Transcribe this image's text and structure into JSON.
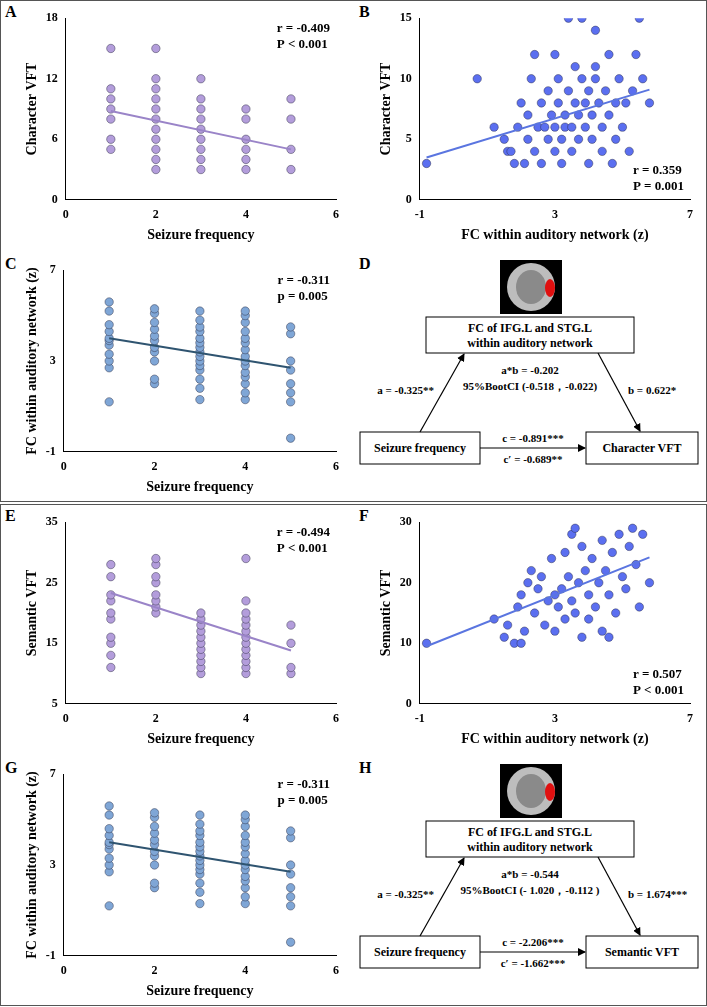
{
  "chart_data": [
    {
      "type": "scatter",
      "panel": "A",
      "x_label": "Seizure frequency",
      "y_label": "Character VFT",
      "x": [
        1,
        1,
        1,
        1,
        1,
        1,
        1,
        2,
        2,
        2,
        2,
        2,
        2,
        2,
        2,
        2,
        2,
        2,
        3,
        3,
        3,
        3,
        3,
        3,
        3,
        3,
        3,
        4,
        4,
        4,
        4,
        4,
        4,
        5,
        5,
        5,
        5
      ],
      "values": [
        5,
        6,
        8,
        9,
        10,
        11,
        15,
        3,
        4,
        5,
        6,
        7,
        8,
        9,
        10,
        11,
        12,
        15,
        3,
        4,
        5,
        6,
        7,
        8,
        9,
        10,
        12,
        3,
        4,
        5,
        6,
        8,
        9,
        3,
        5,
        8,
        10
      ],
      "color": "#b39ddb",
      "fit_line": {
        "x": [
          1,
          5
        ],
        "values": [
          8.8,
          5.0
        ],
        "color": "#9a84c8"
      },
      "annotations": [
        "r = -0.409",
        "P < 0.001"
      ],
      "xlim": [
        0,
        6
      ],
      "xticks": [
        0,
        2,
        4,
        6
      ],
      "ylim": [
        0,
        18
      ],
      "yticks": [
        0,
        6,
        12,
        18
      ],
      "grid": false
    },
    {
      "type": "scatter",
      "panel": "B",
      "x_label": "FC within auditory network (z)",
      "y_label": "Character VFT",
      "x": [
        -0.8,
        0.7,
        1.2,
        1.5,
        1.6,
        1.7,
        1.8,
        1.9,
        2.0,
        2.1,
        2.2,
        2.2,
        2.3,
        2.4,
        2.5,
        2.6,
        2.6,
        2.7,
        2.8,
        2.8,
        2.9,
        3.0,
        3.0,
        3.1,
        3.1,
        3.2,
        3.2,
        3.3,
        3.3,
        3.4,
        3.4,
        3.5,
        3.5,
        3.6,
        3.6,
        3.7,
        3.7,
        3.8,
        3.8,
        3.9,
        3.9,
        4.0,
        4.0,
        4.1,
        4.1,
        4.2,
        4.2,
        4.3,
        4.4,
        4.4,
        4.5,
        4.6,
        4.6,
        4.7,
        4.8,
        4.8,
        4.9,
        5.0,
        5.1,
        5.2,
        5.3,
        5.4,
        5.5,
        5.6,
        5.8,
        3.0,
        2.4,
        4.2
      ],
      "values": [
        3,
        10,
        6,
        5,
        4,
        4,
        3,
        6,
        8,
        3,
        5,
        7,
        10,
        4,
        6,
        3,
        8,
        6,
        5,
        9,
        7,
        4,
        6,
        8,
        10,
        3,
        5,
        6,
        7,
        9,
        15,
        4,
        6,
        8,
        11,
        5,
        7,
        10,
        15,
        6,
        8,
        3,
        9,
        5,
        7,
        10,
        11,
        8,
        4,
        6,
        9,
        7,
        12,
        3,
        5,
        8,
        10,
        6,
        8,
        4,
        9,
        12,
        15,
        10,
        8,
        12,
        12,
        14
      ],
      "color": "#5b6ff0",
      "fit_line": {
        "x": [
          -0.8,
          5.8
        ],
        "values": [
          3.5,
          9.1
        ],
        "color": "#5a75e0"
      },
      "annotations": [
        "r = 0.359",
        "P = 0.001"
      ],
      "xlim": [
        -1,
        7
      ],
      "xticks": [
        -1,
        3,
        7
      ],
      "ylim": [
        0,
        15
      ],
      "yticks": [
        0,
        5,
        10,
        15
      ],
      "grid": false
    },
    {
      "type": "scatter",
      "panel": "C",
      "x_label": "Seizure frequency",
      "y_label": "FC within auditory network (z)",
      "x": [
        1,
        1,
        1,
        1,
        1,
        1,
        1,
        1,
        1,
        1,
        1,
        2,
        2,
        2,
        2,
        2,
        2,
        2,
        2,
        2,
        2,
        2,
        3,
        3,
        3,
        3,
        3,
        3,
        3,
        3,
        3,
        3,
        3,
        3,
        3,
        3,
        3,
        4,
        4,
        4,
        4,
        4,
        4,
        4,
        4,
        4,
        4,
        4,
        4,
        4,
        4,
        4,
        5,
        5,
        5,
        5,
        5,
        5,
        5,
        5
      ],
      "values": [
        1.2,
        2.7,
        3.0,
        3.3,
        3.7,
        3.9,
        4.0,
        4.3,
        4.6,
        5.2,
        5.6,
        2.0,
        2.2,
        3.0,
        3.4,
        3.6,
        3.9,
        4.1,
        4.4,
        4.7,
        5.1,
        5.3,
        1.3,
        1.8,
        2.2,
        2.6,
        2.8,
        3.0,
        3.2,
        3.4,
        3.6,
        3.8,
        4.0,
        4.3,
        4.5,
        4.8,
        5.2,
        1.3,
        1.6,
        2.0,
        2.3,
        2.5,
        2.8,
        3.0,
        3.2,
        3.5,
        3.8,
        4.0,
        4.3,
        4.7,
        5.0,
        5.2,
        -0.4,
        1.2,
        1.6,
        2.0,
        2.6,
        3.0,
        4.2,
        4.5
      ],
      "color": "#7fa6d6",
      "fit_line": {
        "x": [
          1,
          5
        ],
        "values": [
          4.0,
          2.7
        ],
        "color": "#2f5470"
      },
      "annotations": [
        "r = -0.311",
        "p = 0.005"
      ],
      "xlim": [
        0,
        6
      ],
      "xticks": [
        0,
        2,
        4,
        6
      ],
      "ylim": [
        -1,
        7
      ],
      "yticks": [
        -1,
        3,
        7
      ],
      "grid": false
    },
    {
      "type": "scatter",
      "panel": "E",
      "x_label": "Seizure frequency",
      "y_label": "Semantic VFT",
      "x": [
        1,
        1,
        1,
        1,
        1,
        1,
        1,
        1,
        1,
        1,
        2,
        2,
        2,
        2,
        2,
        2,
        2,
        2,
        3,
        3,
        3,
        3,
        3,
        3,
        3,
        3,
        3,
        3,
        3,
        4,
        4,
        4,
        4,
        4,
        4,
        4,
        4,
        4,
        4,
        4,
        4,
        4,
        5,
        5,
        5,
        5
      ],
      "values": [
        11,
        13,
        15,
        16,
        19,
        20,
        22,
        23,
        26,
        28,
        20,
        21,
        22,
        23,
        25,
        26,
        28,
        29,
        10,
        11,
        12,
        13,
        14,
        15,
        16,
        17,
        18,
        19,
        20,
        10,
        11,
        12,
        13,
        14,
        15,
        16,
        17,
        18,
        19,
        20,
        22,
        29,
        10,
        11,
        15,
        18
      ],
      "color": "#b39ddb",
      "fit_line": {
        "x": [
          1,
          5
        ],
        "values": [
          23.3,
          13.8
        ],
        "color": "#9a84c8"
      },
      "annotations": [
        "r = -0.494",
        "P < 0.001"
      ],
      "xlim": [
        0,
        6
      ],
      "xticks": [
        0,
        2,
        4,
        6
      ],
      "ylim": [
        5,
        35
      ],
      "yticks": [
        5,
        15,
        25,
        35
      ],
      "grid": false
    },
    {
      "type": "scatter",
      "panel": "F",
      "x_label": "FC within auditory network (z)",
      "y_label": "Semantic VFT",
      "x": [
        -0.8,
        1.2,
        1.5,
        1.6,
        1.8,
        1.9,
        2.0,
        2.1,
        2.2,
        2.3,
        2.4,
        2.5,
        2.6,
        2.7,
        2.8,
        2.9,
        3.0,
        3.0,
        3.1,
        3.2,
        3.3,
        3.3,
        3.4,
        3.5,
        3.5,
        3.6,
        3.7,
        3.8,
        3.8,
        3.9,
        4.0,
        4.0,
        4.1,
        4.2,
        4.3,
        4.4,
        4.4,
        4.5,
        4.6,
        4.7,
        4.8,
        4.9,
        5.0,
        5.1,
        5.2,
        5.3,
        5.4,
        5.5,
        5.6,
        5.8,
        2.0,
        3.6,
        4.6
      ],
      "values": [
        10,
        14,
        11,
        13,
        10,
        16,
        18,
        12,
        20,
        22,
        15,
        19,
        21,
        13,
        17,
        24,
        18,
        12,
        16,
        19,
        25,
        14,
        21,
        17,
        28,
        15,
        20,
        26,
        11,
        22,
        18,
        14,
        24,
        16,
        20,
        27,
        12,
        22,
        18,
        25,
        15,
        28,
        21,
        19,
        26,
        29,
        23,
        16,
        28,
        20,
        10,
        29,
        11
      ],
      "color": "#5b6ff0",
      "fit_line": {
        "x": [
          -0.8,
          5.8
        ],
        "values": [
          9.5,
          24.2
        ],
        "color": "#5a75e0"
      },
      "annotations": [
        "r = 0.507",
        "P < 0.001"
      ],
      "xlim": [
        -1,
        7
      ],
      "xticks": [
        -1,
        3,
        7
      ],
      "ylim": [
        0,
        30
      ],
      "yticks": [
        0,
        10,
        20,
        30
      ],
      "grid": false
    },
    {
      "type": "scatter",
      "panel": "G",
      "x_label": "Seizure frequency",
      "y_label": "FC within auditory network (z)",
      "x": [
        1,
        1,
        1,
        1,
        1,
        1,
        1,
        1,
        1,
        1,
        1,
        2,
        2,
        2,
        2,
        2,
        2,
        2,
        2,
        2,
        2,
        2,
        3,
        3,
        3,
        3,
        3,
        3,
        3,
        3,
        3,
        3,
        3,
        3,
        3,
        3,
        3,
        4,
        4,
        4,
        4,
        4,
        4,
        4,
        4,
        4,
        4,
        4,
        4,
        4,
        4,
        4,
        5,
        5,
        5,
        5,
        5,
        5,
        5,
        5
      ],
      "values": [
        1.2,
        2.7,
        3.0,
        3.3,
        3.7,
        3.9,
        4.0,
        4.3,
        4.6,
        5.2,
        5.6,
        2.0,
        2.2,
        3.0,
        3.4,
        3.6,
        3.9,
        4.1,
        4.4,
        4.7,
        5.1,
        5.3,
        1.3,
        1.8,
        2.2,
        2.6,
        2.8,
        3.0,
        3.2,
        3.4,
        3.6,
        3.8,
        4.0,
        4.3,
        4.5,
        4.8,
        5.2,
        1.3,
        1.6,
        2.0,
        2.3,
        2.5,
        2.8,
        3.0,
        3.2,
        3.5,
        3.8,
        4.0,
        4.3,
        4.7,
        5.0,
        5.2,
        -0.4,
        1.2,
        1.6,
        2.0,
        2.6,
        3.0,
        4.2,
        4.5
      ],
      "color": "#7fa6d6",
      "fit_line": {
        "x": [
          1,
          5
        ],
        "values": [
          4.0,
          2.7
        ],
        "color": "#2f5470"
      },
      "annotations": [
        "r = -0.311",
        "p = 0.005"
      ],
      "xlim": [
        0,
        6
      ],
      "xticks": [
        0,
        2,
        4,
        6
      ],
      "ylim": [
        -1,
        7
      ],
      "yticks": [
        -1,
        3,
        7
      ],
      "grid": false
    }
  ],
  "diagrams": [
    {
      "panel": "D",
      "mediator": "FC of IFG.L and STG.L within auditory network",
      "predictor": "Seizure frequency",
      "outcome": "Character VFT",
      "a": "a = -0.325**",
      "b": "b = 0.622*",
      "ab": "a*b = -0.202",
      "ci": "95%BootCI (-0.518，-0.022)",
      "c": "c = -0.891***",
      "c_prime": "c′ = -0.689**"
    },
    {
      "panel": "H",
      "mediator": "FC of IFG.L and STG.L within auditory network",
      "predictor": "Seizure frequency",
      "outcome": "Semantic VFT",
      "a": "a = -0.325**",
      "b": "b = 1.674***",
      "ab": "a*b = -0.544",
      "ci": "95%BootCI (- 1.020，-0.112 )",
      "c": "c = -2.206***",
      "c_prime": "c′ = -1.662***"
    }
  ]
}
